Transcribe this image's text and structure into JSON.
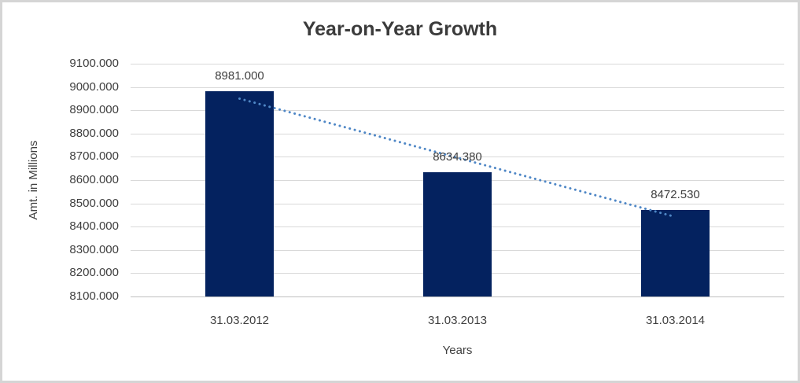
{
  "frame": {
    "background": "#ffffff",
    "border_color": "#d5d5d5"
  },
  "chart_data": {
    "type": "bar",
    "title": "Year-on-Year Growth",
    "xlabel": "Years",
    "ylabel": "Amt. in Millions",
    "categories": [
      "31.03.2012",
      "31.03.2013",
      "31.03.2014"
    ],
    "values": [
      8981.0,
      8634.38,
      8472.53
    ],
    "value_labels": [
      "8981.000",
      "8634.380",
      "8472.530"
    ],
    "ylim": [
      8100,
      9100
    ],
    "ytick_step": 100,
    "ytick_labels": [
      "9100.000",
      "9000.000",
      "8900.000",
      "8800.000",
      "8700.000",
      "8600.000",
      "8500.000",
      "8400.000",
      "8300.000",
      "8200.000",
      "8100.000"
    ],
    "grid": true,
    "legend": false,
    "bar_color": "#04225F",
    "gridline_color": "#D9D9D9",
    "axis_line_color": "#BFBFBF",
    "text_color": "#3F3F3F",
    "title_color": "#3B3B3B",
    "trendline": {
      "style": "dotted",
      "color": "#4F87C6",
      "values": [
        8950,
        8696,
        8442
      ]
    }
  }
}
